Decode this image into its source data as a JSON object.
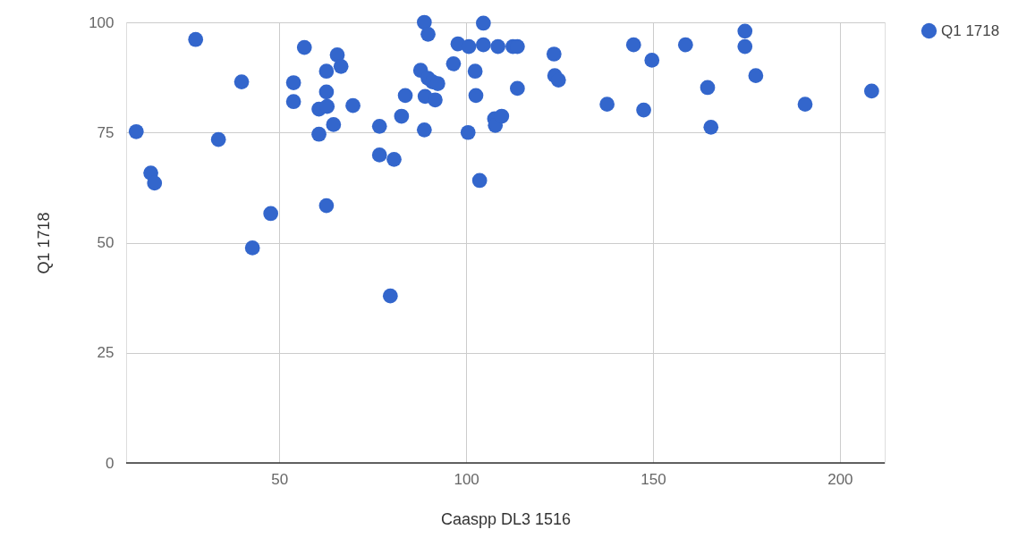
{
  "chart_data": {
    "type": "scatter",
    "xlabel": "Caaspp DL3 1516",
    "ylabel": "Q1 1718",
    "xlim": [
      9,
      212
    ],
    "xticks": [
      50,
      100,
      150,
      200
    ],
    "ylim": [
      0,
      100
    ],
    "yticks": [
      0,
      25,
      50,
      75,
      100
    ],
    "grid": true,
    "legend": "top right",
    "marker": "circle",
    "series": [
      {
        "name": "Q1 1718",
        "color": "#3366cc",
        "x": [
          11.7,
          15.6,
          16.6,
          27.6,
          33.7,
          39.9,
          42.8,
          47.7,
          53.8,
          53.8,
          56.7,
          60.6,
          60.6,
          62.6,
          62.6,
          62.6,
          62.8,
          64.5,
          65.5,
          66.5,
          69.7,
          76.8,
          76.8,
          79.7,
          80.7,
          82.7,
          83.7,
          87.8,
          88.8,
          89.0,
          88.8,
          89.8,
          89.8,
          91.0,
          91.7,
          92.4,
          96.6,
          97.8,
          100.7,
          100.5,
          102.4,
          102.6,
          103.6,
          104.6,
          104.6,
          108.5,
          107.6,
          107.8,
          109.5,
          112.5,
          113.7,
          113.7,
          123.5,
          123.7,
          124.7,
          137.7,
          144.8,
          147.5,
          149.7,
          158.7,
          164.6,
          165.5,
          174.6,
          174.6,
          177.5,
          190.7,
          208.5
        ],
        "values": [
          75.2,
          65.8,
          63.5,
          96.1,
          73.4,
          86.5,
          48.8,
          56.6,
          86.3,
          82.0,
          94.3,
          80.3,
          74.6,
          88.9,
          84.2,
          58.4,
          80.9,
          76.8,
          92.6,
          90.0,
          81.1,
          76.4,
          69.9,
          37.9,
          68.9,
          78.7,
          83.4,
          89.1,
          100,
          83.2,
          75.6,
          97.3,
          87.3,
          86.5,
          82.4,
          86.1,
          90.6,
          95.1,
          94.5,
          75.0,
          88.9,
          83.4,
          64.1,
          99.8,
          94.9,
          94.5,
          78.1,
          76.6,
          78.7,
          94.5,
          94.5,
          85.0,
          92.8,
          87.9,
          86.9,
          81.4,
          94.9,
          80.1,
          91.4,
          94.9,
          85.2,
          76.2,
          98.0,
          94.5,
          87.9,
          81.4,
          84.4
        ]
      }
    ]
  }
}
